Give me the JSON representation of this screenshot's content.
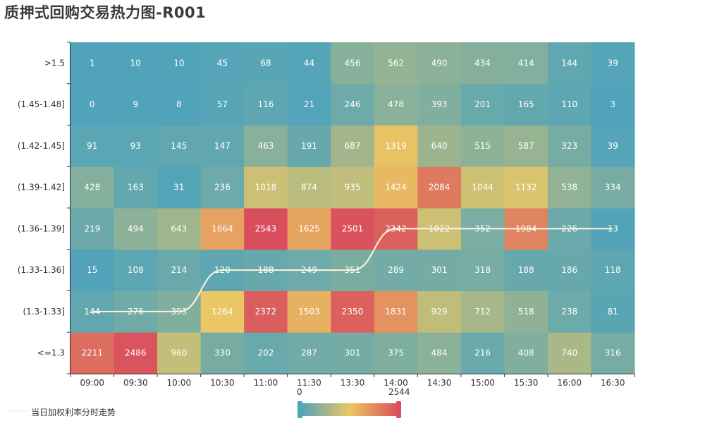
{
  "title": "质押式回购交易热力图-R001",
  "legend": {
    "label": "当日加权利率分时走势",
    "line_color": "#fdf5dc"
  },
  "visual_map": {
    "min_label": "0",
    "max_label": "2544",
    "min": 0,
    "max": 2544,
    "colors": [
      "#50a3ba",
      "#eac763",
      "#d94e5d"
    ]
  },
  "chart_data": {
    "type": "heatmap",
    "x_categories": [
      "09:00",
      "09:30",
      "10:00",
      "10:30",
      "11:00",
      "11:30",
      "13:30",
      "14:00",
      "14:30",
      "15:00",
      "15:30",
      "16:00",
      "16:30"
    ],
    "y_categories": [
      "<=1.3",
      "(1.3-1.33]",
      "(1.33-1.36]",
      "(1.36-1.39]",
      "(1.39-1.42]",
      "(1.42-1.45]",
      "(1.45-1.48]",
      ">1.5"
    ],
    "values": [
      [
        2211,
        2486,
        960,
        330,
        202,
        287,
        301,
        375,
        484,
        216,
        408,
        740,
        316
      ],
      [
        144,
        276,
        393,
        1264,
        2372,
        1503,
        2350,
        1831,
        929,
        712,
        518,
        238,
        81
      ],
      [
        15,
        108,
        214,
        120,
        188,
        249,
        351,
        289,
        301,
        318,
        188,
        186,
        118
      ],
      [
        219,
        494,
        643,
        1664,
        2543,
        1625,
        2501,
        2342,
        1022,
        352,
        1984,
        226,
        13
      ],
      [
        428,
        163,
        31,
        236,
        1018,
        874,
        935,
        1424,
        2084,
        1044,
        1132,
        538,
        334
      ],
      [
        91,
        93,
        145,
        147,
        463,
        191,
        687,
        1319,
        640,
        515,
        587,
        323,
        39
      ],
      [
        0,
        9,
        8,
        57,
        116,
        21,
        246,
        478,
        393,
        201,
        165,
        110,
        3
      ],
      [
        1,
        10,
        10,
        45,
        68,
        44,
        456,
        562,
        490,
        434,
        414,
        144,
        39
      ]
    ],
    "line_series": {
      "name": "当日加权利率分时走势",
      "y_band": [
        "(1.3-1.33]",
        "(1.3-1.33]",
        "(1.3-1.33]",
        "(1.33-1.36]",
        "(1.33-1.36]",
        "(1.33-1.36]",
        "(1.33-1.36]",
        "(1.36-1.39]",
        "(1.36-1.39]",
        "(1.36-1.39]",
        "(1.36-1.39]",
        "(1.36-1.39]",
        "(1.36-1.39]"
      ]
    },
    "value_range": [
      0,
      2544
    ]
  }
}
